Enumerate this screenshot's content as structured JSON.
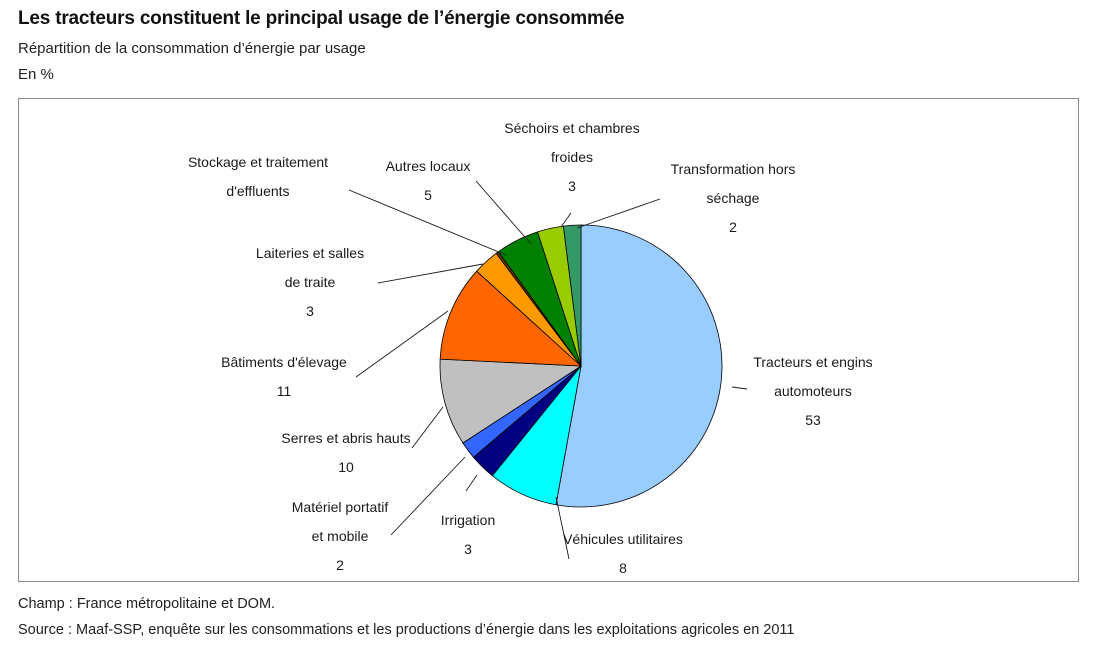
{
  "header": {
    "title": "Les tracteurs constituent le principal usage de l’énergie consommée",
    "subtitle": "Répartition de la consommation d’énergie par usage",
    "unit": "En %"
  },
  "footer": {
    "scope": "Champ : France métropolitaine et DOM.",
    "source": "Source : Maaf-SSP, enquête sur les consommations et les productions d’énergie dans les exploitations agricoles en 2011"
  },
  "chart_data": {
    "type": "pie",
    "unit": "%",
    "start": "top",
    "direction": "clockwise",
    "slices": [
      {
        "label": [
          "Tracteurs et engins",
          "automoteurs"
        ],
        "value": 53,
        "color": "#99ccff"
      },
      {
        "label": [
          "Véhicules utilitaires"
        ],
        "value": 8,
        "color": "#00ffff"
      },
      {
        "label": [
          "Irrigation"
        ],
        "value": 3,
        "color": "#000080"
      },
      {
        "label": [
          "Matériel portatif",
          "et mobile"
        ],
        "value": 2,
        "color": "#3366ff"
      },
      {
        "label": [
          "Serres et abris hauts"
        ],
        "value": 10,
        "color": "#c0c0c0"
      },
      {
        "label": [
          "Bâtiments d'élevage"
        ],
        "value": 11,
        "color": "#ff6600"
      },
      {
        "label": [
          "Laiteries et salles",
          "de traite"
        ],
        "value": 3,
        "color": "#ff9900"
      },
      {
        "label": [
          "Stockage et traitement",
          "d'effluents"
        ],
        "value": 0.3,
        "color": "#663300"
      },
      {
        "label": [
          "Autres locaux"
        ],
        "value": 5,
        "color": "#008000"
      },
      {
        "label": [
          "Séchoirs et chambres",
          "froides"
        ],
        "value": 3,
        "color": "#99cc00"
      },
      {
        "label": [
          "Transformation hors",
          "séchage"
        ],
        "value": 2,
        "color": "#339966"
      }
    ],
    "value_labels": [
      "53",
      "8",
      "3",
      "2",
      "10",
      "11",
      "3",
      "",
      "5",
      "3",
      "2"
    ]
  }
}
